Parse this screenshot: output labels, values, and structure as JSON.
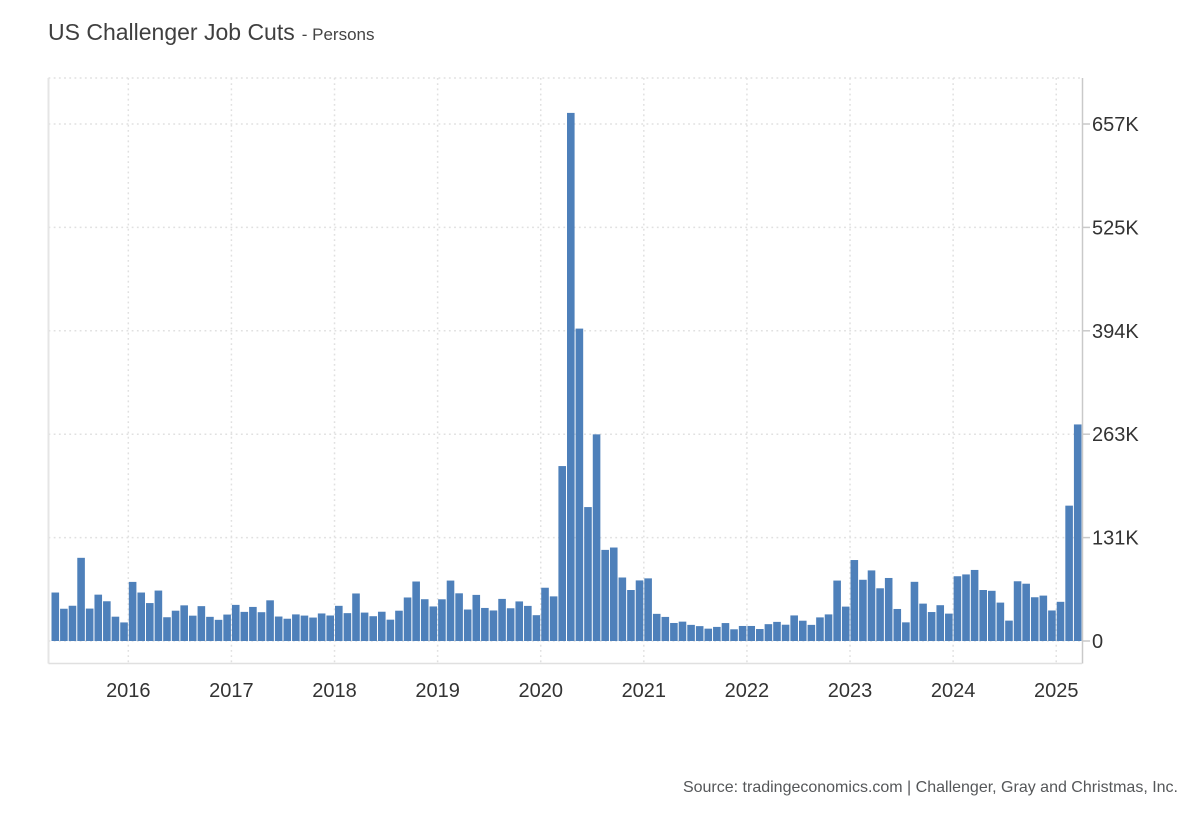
{
  "page": {
    "title": "US Challenger Job Cuts",
    "subtitle": "- Persons",
    "source_text": "Source: tradingeconomics.com | Challenger, Gray and Christmas, Inc."
  },
  "chart_data": {
    "type": "bar",
    "title": "US Challenger Job Cuts",
    "unit_label": "Persons",
    "frequency": "monthly",
    "x_start": "2015-04",
    "x_end": "2025-03",
    "x_tick_labels": [
      "2016",
      "2017",
      "2018",
      "2019",
      "2020",
      "2021",
      "2022",
      "2023",
      "2024",
      "2025"
    ],
    "y_tick_labels": [
      "0",
      "131K",
      "263K",
      "394K",
      "525K",
      "657K"
    ],
    "y_tick_values_thousands": [
      0,
      131.4,
      262.8,
      394.2,
      525.6,
      657
    ],
    "ylim_thousands": [
      0,
      715
    ],
    "grid": "dotted",
    "legend_position": "none",
    "bar_color": "#4e80ba",
    "grid_color": "#e0e0e0",
    "axis_color": "#c9c9c9",
    "tick_text_color": "#333333",
    "values_thousands": [
      61.6,
      41.0,
      44.8,
      105.7,
      41.2,
      58.9,
      50.5,
      30.9,
      23.6,
      75.1,
      61.6,
      48.2,
      64.1,
      30.2,
      38.5,
      45.3,
      32.2,
      44.3,
      30.7,
      26.9,
      33.6,
      45.9,
      37.0,
      43.3,
      36.6,
      51.7,
      31.1,
      28.3,
      33.8,
      32.3,
      29.8,
      35.0,
      32.4,
      44.7,
      35.4,
      60.4,
      36.1,
      31.5,
      37.2,
      27.1,
      38.5,
      55.3,
      75.6,
      53.1,
      43.9,
      53.0,
      76.8,
      60.6,
      40.0,
      58.6,
      42.0,
      38.8,
      53.5,
      41.6,
      50.3,
      44.6,
      32.8,
      67.7,
      56.7,
      222.3,
      671.1,
      397.0,
      170.2,
      262.6,
      115.8,
      118.8,
      80.7,
      64.8,
      77.0,
      79.6,
      34.5,
      30.6,
      22.9,
      24.6,
      20.5,
      18.9,
      15.7,
      17.9,
      22.8,
      14.9,
      19.1,
      19.1,
      15.2,
      21.4,
      24.3,
      20.7,
      32.5,
      25.8,
      20.5,
      30.0,
      33.8,
      76.8,
      43.7,
      102.9,
      77.8,
      89.7,
      67.0,
      80.1,
      40.7,
      23.7,
      75.2,
      47.5,
      36.8,
      45.5,
      34.8,
      82.3,
      84.6,
      90.3,
      64.8,
      63.8,
      48.8,
      25.9,
      75.9,
      72.8,
      55.6,
      57.7,
      38.8,
      49.8,
      172.0,
      275.2
    ]
  }
}
